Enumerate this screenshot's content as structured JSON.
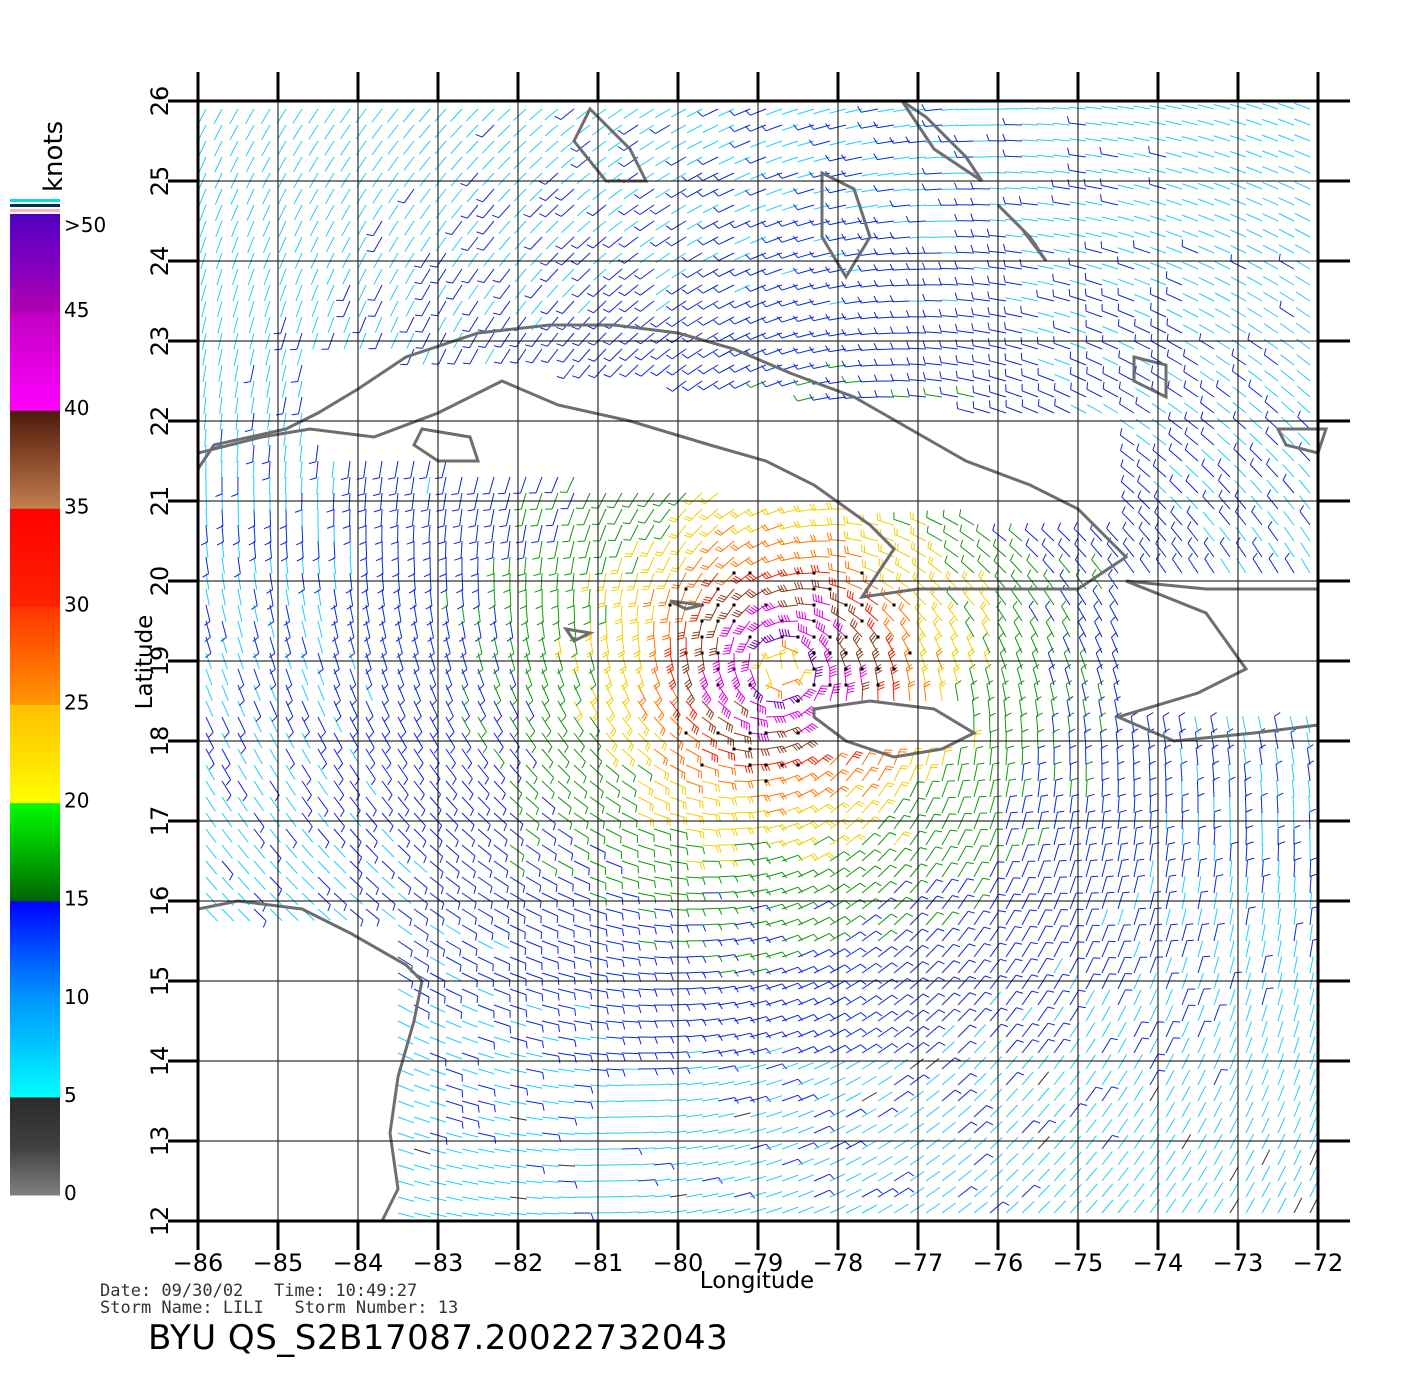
{
  "legend": {
    "unit": "knots",
    "tick_labels": [
      ">50",
      "45",
      "40",
      "35",
      "30",
      "25",
      "20",
      "15",
      "10",
      "5",
      "0"
    ],
    "bands": [
      {
        "from": 0,
        "to": 5,
        "colors": [
          "#808080",
          "#404040",
          "#2a2a2a"
        ]
      },
      {
        "from": 5,
        "to": 10,
        "colors": [
          "#00ffff",
          "#00c8ff",
          "#0096ff"
        ]
      },
      {
        "from": 10,
        "to": 15,
        "colors": [
          "#0096ff",
          "#0050ff",
          "#0000ff"
        ]
      },
      {
        "from": 15,
        "to": 20,
        "colors": [
          "#006400",
          "#00b400",
          "#00ff00"
        ]
      },
      {
        "from": 20,
        "to": 25,
        "colors": [
          "#ffff00",
          "#ffdd00",
          "#ffc000"
        ]
      },
      {
        "from": 25,
        "to": 30,
        "colors": [
          "#ff9900",
          "#ff6600",
          "#ff3300"
        ]
      },
      {
        "from": 30,
        "to": 35,
        "colors": [
          "#ff2200",
          "#ff0000"
        ]
      },
      {
        "from": 35,
        "to": 40,
        "colors": [
          "#c08050",
          "#8b4a2b",
          "#4a1a0a"
        ]
      },
      {
        "from": 40,
        "to": 45,
        "colors": [
          "#ff00ff",
          "#e000e0",
          "#c000c0"
        ]
      },
      {
        "from": 45,
        "to": 50,
        "colors": [
          "#b000b0",
          "#8000c0",
          "#5000c0"
        ]
      }
    ]
  },
  "axes": {
    "xlabel": "Longitude",
    "ylabel": "Latitude",
    "lon_ticks": [
      "-86",
      "-85",
      "-84",
      "-83",
      "-82",
      "-81",
      "-80",
      "-79",
      "-78",
      "-77",
      "-76",
      "-75",
      "-74",
      "-73",
      "-72"
    ],
    "lat_ticks": [
      "12",
      "13",
      "14",
      "15",
      "16",
      "17",
      "18",
      "19",
      "20",
      "21",
      "22",
      "23",
      "24",
      "25",
      "26"
    ],
    "lon_range": [
      -86,
      -72
    ],
    "lat_range": [
      12,
      26
    ],
    "grid": true
  },
  "storm": {
    "center_lon": -78.7,
    "center_lat": 18.9
  },
  "footer": {
    "date_time": "Date: 09/30/02   Time: 10:49:27",
    "storm_info": "Storm Name: LILI   Storm Number: 13",
    "title": "BYU QS_S2B17087.20022732043"
  },
  "colors": {
    "coastline": "#6e6e6e",
    "grid": "#000000"
  }
}
